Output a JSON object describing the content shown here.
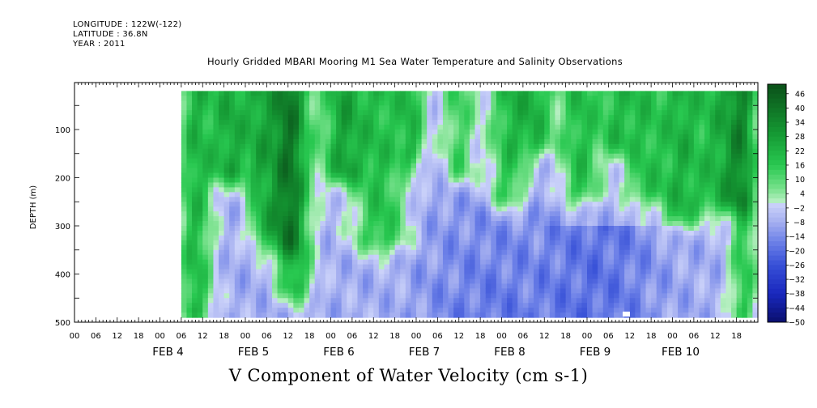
{
  "header": {
    "longitude": "LONGITUDE : 122W(-122)",
    "latitude": "LATITUDE : 36.8N",
    "year": "YEAR : 2011"
  },
  "chart_data": {
    "type": "heatmap",
    "title": "Hourly Gridded MBARI Mooring M1 Sea Water Temperature and Salinity Observations",
    "xlabel": "V Component of Water Velocity (cm s-1)",
    "ylabel": "DEPTH (m)",
    "y_inverted": true,
    "ylim": [
      0,
      500
    ],
    "y_ticks": [
      100,
      200,
      300,
      400,
      500
    ],
    "x_range_hours": [
      "2011-02-03 00:00",
      "2011-02-10 24:00"
    ],
    "x_hour_ticks": [
      "00",
      "06",
      "12",
      "18"
    ],
    "x_day_labels": [
      "FEB  4",
      "FEB  5",
      "FEB  6",
      "FEB  7",
      "FEB  8",
      "FEB  9",
      "FEB 10"
    ],
    "data_extent": {
      "time_start": "2011-02-04 06:00",
      "time_end": "2011-02-10 24:00",
      "depth_top": 20,
      "depth_bottom": 490
    },
    "colorbar": {
      "min": -50,
      "max": 50,
      "step": 2,
      "labels": [
        "46",
        "40",
        "34",
        "28",
        "22",
        "16",
        "10",
        "4",
        "-2",
        "-8",
        "-14",
        "-20",
        "-26",
        "-32",
        "-38",
        "-44",
        "-50"
      ],
      "negative_color": "#1a2dd0",
      "positive_color": "#0a5a1e"
    },
    "field_description": "V velocity mostly between -20 and +20; positive (green) bands extend from surface, strongest near FEB 4, FEB 5-6, FEB 7, FEB 8 and FEB 10; stronger negative (blue) values at depth near FEB 6-9",
    "grid": false
  }
}
